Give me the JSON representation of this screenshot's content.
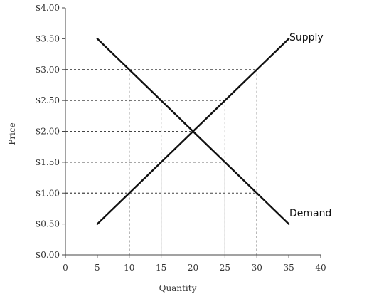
{
  "chart_data": {
    "type": "line",
    "xlabel": "Quantity",
    "ylabel": "Price",
    "xlim": [
      0,
      40
    ],
    "ylim": [
      0,
      4
    ],
    "x_ticks": [
      "0",
      "5",
      "10",
      "15",
      "20",
      "25",
      "30",
      "35",
      "40"
    ],
    "y_ticks": [
      "$0.00",
      "$0.50",
      "$1.00",
      "$1.50",
      "$2.00",
      "$2.50",
      "$3.00",
      "$3.50",
      "$4.00"
    ],
    "series": [
      {
        "name": "Supply",
        "points": [
          [
            5,
            0.5
          ],
          [
            35,
            3.5
          ]
        ]
      },
      {
        "name": "Demand",
        "points": [
          [
            5,
            3.5
          ],
          [
            35,
            0.5
          ]
        ]
      }
    ],
    "reference_points": [
      [
        10,
        1.0
      ],
      [
        10,
        3.0
      ],
      [
        15,
        1.5
      ],
      [
        15,
        2.5
      ],
      [
        20,
        2.0
      ],
      [
        25,
        2.5
      ],
      [
        25,
        1.5
      ],
      [
        30,
        3.0
      ],
      [
        30,
        1.0
      ]
    ],
    "grid": false,
    "line_color": "#111111",
    "guide_color": "#444444"
  }
}
